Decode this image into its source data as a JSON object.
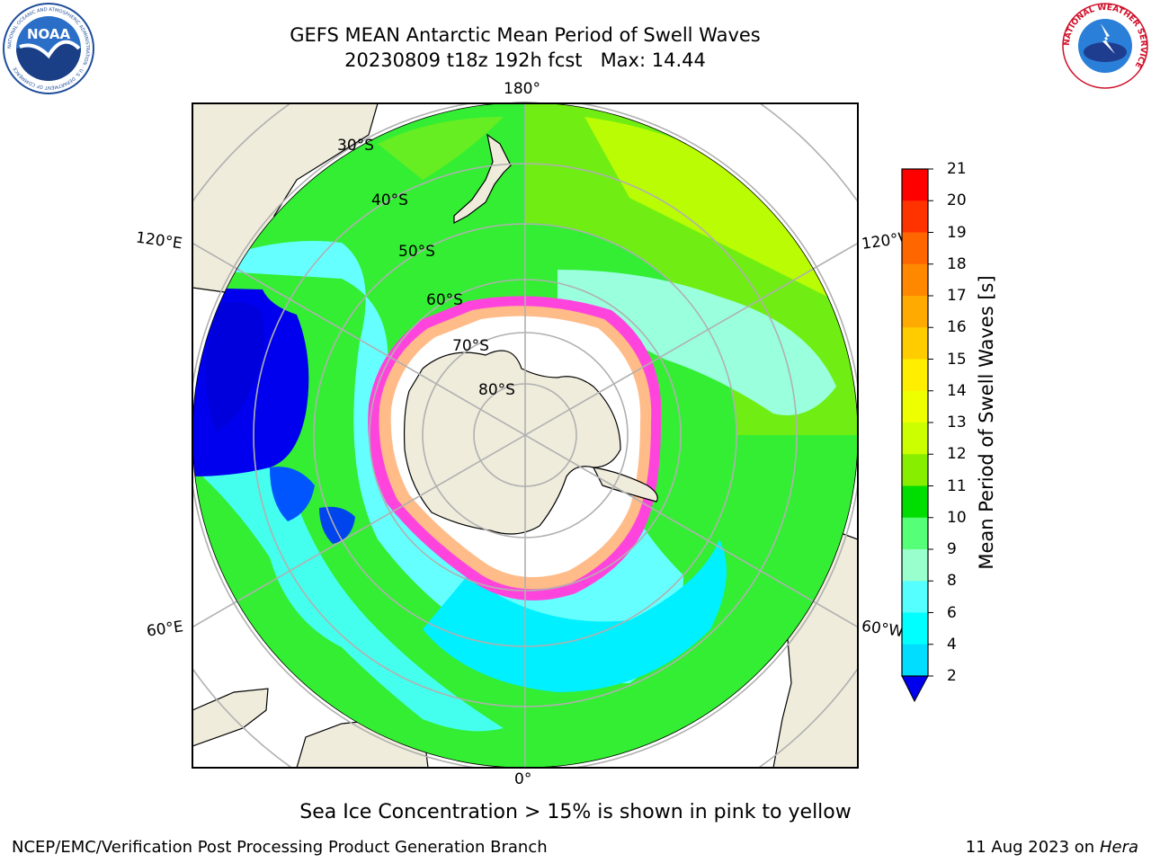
{
  "header": {
    "title_line1": "GEFS MEAN Antarctic Mean Period of Swell Waves",
    "title_line2": "20230809 t18z 192h fcst   Max: 14.44"
  },
  "logos": {
    "left": "NOAA",
    "left_ring_text": "NATIONAL OCEANIC AND ATMOSPHERIC ADMINISTRATION · U.S. DEPARTMENT OF COMMERCE",
    "right_ring_text": "NATIONAL WEATHER SERVICE"
  },
  "map": {
    "projection": "south polar stereographic",
    "longitude_labels": {
      "top": "180°",
      "bottom": "0°",
      "upper_left": "120°E",
      "upper_right": "120°W",
      "lower_left": "60°E",
      "lower_right": "60°W"
    },
    "latitude_labels": [
      "30°S",
      "40°S",
      "50°S",
      "60°S",
      "70°S",
      "80°S"
    ],
    "colors": {
      "land": "#efecdc",
      "ocean_no_data": "#ffffff",
      "grid": "#b0b0b0",
      "sea_ice_low": "#ff33cc",
      "sea_ice_high": "#ffcc66"
    }
  },
  "colorbar": {
    "label": "Mean Period of Swell Waves [s]",
    "ticks": [
      "21",
      "20",
      "19",
      "18",
      "17",
      "16",
      "15",
      "14",
      "13",
      "12",
      "11",
      "10",
      "9",
      "8",
      "6",
      "4",
      "2"
    ],
    "colors": [
      "#ff0000",
      "#ff3300",
      "#ff6600",
      "#ff8800",
      "#ffaa00",
      "#ffcc00",
      "#ffee00",
      "#eeff00",
      "#ccff00",
      "#88ee00",
      "#00dd00",
      "#55ff77",
      "#99ffcc",
      "#55ffff",
      "#00ffff",
      "#00ddff",
      "#0077ff",
      "#0000ff"
    ],
    "extend_below_color": "#0000ee"
  },
  "footer": {
    "ice_note": "Sea Ice Concentration > 15% is shown in pink to yellow",
    "credit_left": "NCEP/EMC/Verification Post Processing Product Generation Branch",
    "date": "11 Aug 2023 on",
    "host": "Hera"
  }
}
